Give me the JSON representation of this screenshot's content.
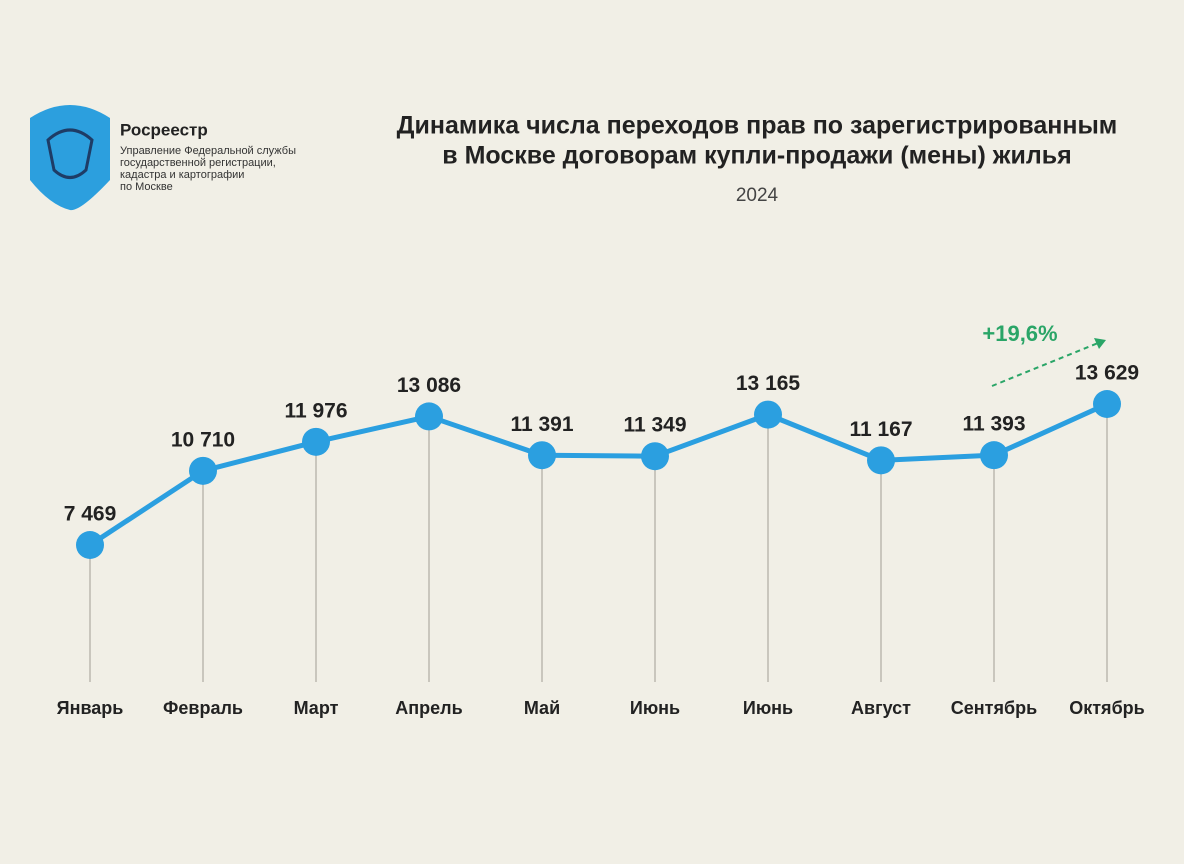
{
  "logo": {
    "name": "Росреестр",
    "lines": [
      "Управление Федеральной службы",
      "государственной регистрации,",
      "кадастра и картографии",
      "по Москве"
    ]
  },
  "chart_data": {
    "type": "line",
    "title": [
      "Динамика числа переходов прав по зарегистрированным",
      "в Москве договорам купли-продажи (мены) жилья"
    ],
    "subtitle": "2024",
    "annotation": "+19,6%",
    "categories": [
      "Январь",
      "Февраль",
      "Март",
      "Апрель",
      "Май",
      "Июнь",
      "Июнь",
      "Август",
      "Сентябрь",
      "Октябрь"
    ],
    "values": [
      7469,
      10710,
      11976,
      13086,
      11391,
      11349,
      13165,
      11167,
      11393,
      13629
    ],
    "value_labels": [
      "7 469",
      "10 710",
      "11 976",
      "13 086",
      "11 391",
      "11 349",
      "13 165",
      "11 167",
      "11 393",
      "13 629"
    ],
    "color": "#2b9fe0"
  }
}
